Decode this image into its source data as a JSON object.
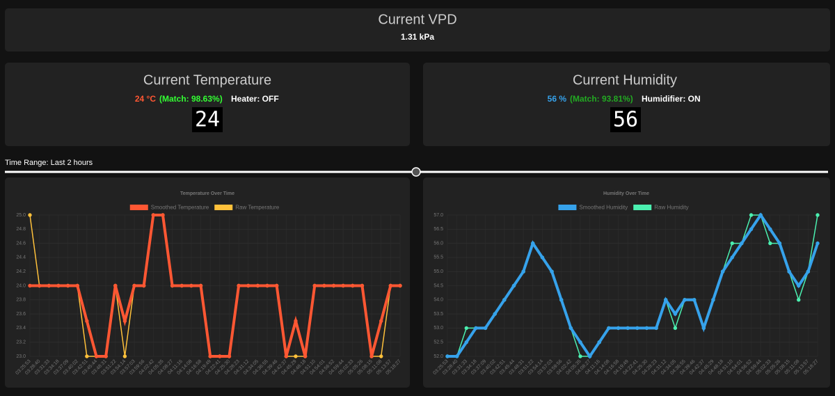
{
  "vpd": {
    "title": "Current VPD",
    "value": "1.31 kPa"
  },
  "temperature": {
    "title": "Current Temperature",
    "value": "24 °C",
    "match": "(Match: 98.63%)",
    "device": "Heater: OFF",
    "display": "24"
  },
  "humidity": {
    "title": "Current Humidity",
    "value": "56 %",
    "match": "(Match: 93.81%)",
    "device": "Humidifier: ON",
    "display": "56"
  },
  "time_range": "Time Range: Last 2 hours",
  "chart_data": [
    {
      "type": "line",
      "title": "Temperature Over Time",
      "grid": true,
      "legend": "top",
      "categories": [
        "03:25:53",
        "03:28:40",
        "03:31:33",
        "03:34:18",
        "03:37:09",
        "03:40:02",
        "03:42:51",
        "03:45:44",
        "03:48:31",
        "03:51:22",
        "03:54:14",
        "03:57:03",
        "03:59:56",
        "04:02:42",
        "04:05:35",
        "04:08:27",
        "04:11:16",
        "04:14:08",
        "04:16:58",
        "04:19:49",
        "04:22:41",
        "04:25:30",
        "04:28:23",
        "04:31:12",
        "04:34:05",
        "04:36:55",
        "04:39:46",
        "04:42:37",
        "04:45:29",
        "04:48:18",
        "04:51:10",
        "04:54:01",
        "04:56:52",
        "04:59:44",
        "05:02:33",
        "05:05:26",
        "05:08:15",
        "05:11:08",
        "05:13:57",
        "05:18:27"
      ],
      "ylim": [
        23,
        25
      ],
      "yticks": [
        {
          "value": 23,
          "label": "23.0"
        },
        23.2,
        23.4,
        23.6,
        23.8,
        {
          "value": 24,
          "label": "24.0"
        },
        24.2,
        24.4,
        24.6,
        24.8,
        {
          "value": 25,
          "label": "25.0"
        }
      ],
      "series": [
        {
          "name": "Smoothed Temperature",
          "color": "#ff5733",
          "values": [
            24,
            24,
            24,
            24,
            24,
            24,
            23.5,
            23,
            23,
            24,
            23.5,
            24,
            24,
            25,
            25,
            24,
            24,
            24,
            24,
            23,
            23,
            23,
            24,
            24,
            24,
            24,
            24,
            23,
            23.5,
            23,
            24,
            24,
            24,
            24,
            24,
            24,
            23,
            23.5,
            24,
            24
          ]
        },
        {
          "name": "Raw Temperature",
          "color": "#ffc13b",
          "values": [
            25,
            24,
            24,
            24,
            24,
            24,
            23,
            23,
            23,
            24,
            23,
            24,
            24,
            25,
            25,
            24,
            24,
            24,
            24,
            23,
            23,
            23,
            24,
            24,
            24,
            24,
            24,
            23,
            23,
            23,
            24,
            24,
            24,
            24,
            24,
            24,
            23,
            23,
            24,
            24
          ]
        }
      ]
    },
    {
      "type": "line",
      "title": "Humidity Over Time",
      "grid": true,
      "legend": "top",
      "categories": [
        "03:25:53",
        "03:28:40",
        "03:31:33",
        "03:34:18",
        "03:37:09",
        "03:40:02",
        "03:42:51",
        "03:45:44",
        "03:48:31",
        "03:51:22",
        "03:54:14",
        "03:57:03",
        "03:59:56",
        "04:02:42",
        "04:05:35",
        "04:08:27",
        "04:11:16",
        "04:14:08",
        "04:16:58",
        "04:19:49",
        "04:22:41",
        "04:25:30",
        "04:28:23",
        "04:31:12",
        "04:34:05",
        "04:36:55",
        "04:39:46",
        "04:42:37",
        "04:45:29",
        "04:48:18",
        "04:51:10",
        "04:54:01",
        "04:56:52",
        "04:59:44",
        "05:02:33",
        "05:05:26",
        "05:08:15",
        "05:11:08",
        "05:13:57",
        "05:18:27"
      ],
      "ylim": [
        52,
        57
      ],
      "yticks": [
        {
          "value": 52,
          "label": "52.0"
        },
        52.5,
        {
          "value": 53,
          "label": "53.0"
        },
        53.5,
        {
          "value": 54,
          "label": "54.0"
        },
        54.5,
        {
          "value": 55,
          "label": "55.0"
        },
        55.5,
        {
          "value": 56,
          "label": "56.0"
        },
        56.5,
        {
          "value": 57,
          "label": "57.0"
        }
      ],
      "series": [
        {
          "name": "Smoothed Humidity",
          "color": "#36a2eb",
          "values": [
            52,
            52,
            52.5,
            53,
            53,
            53.5,
            54,
            54.5,
            55,
            56,
            55.5,
            55,
            54,
            53,
            52.5,
            52,
            52.5,
            53,
            53,
            53,
            53,
            53,
            53,
            54,
            53.5,
            54,
            54,
            53,
            54,
            55,
            55.5,
            56,
            56.5,
            57,
            56.5,
            56,
            55,
            54.5,
            55,
            56
          ]
        },
        {
          "name": "Raw Humidity",
          "color": "#4bf0b0",
          "values": [
            52,
            52,
            53,
            53,
            53,
            53.5,
            54,
            54.5,
            55,
            56,
            55.5,
            55,
            54,
            53,
            52,
            52,
            52.5,
            53,
            53,
            53,
            53,
            53,
            53,
            54,
            53,
            54,
            54,
            53,
            54,
            55,
            56,
            56,
            57,
            57,
            56,
            56,
            55,
            54,
            55,
            57
          ]
        }
      ]
    }
  ]
}
